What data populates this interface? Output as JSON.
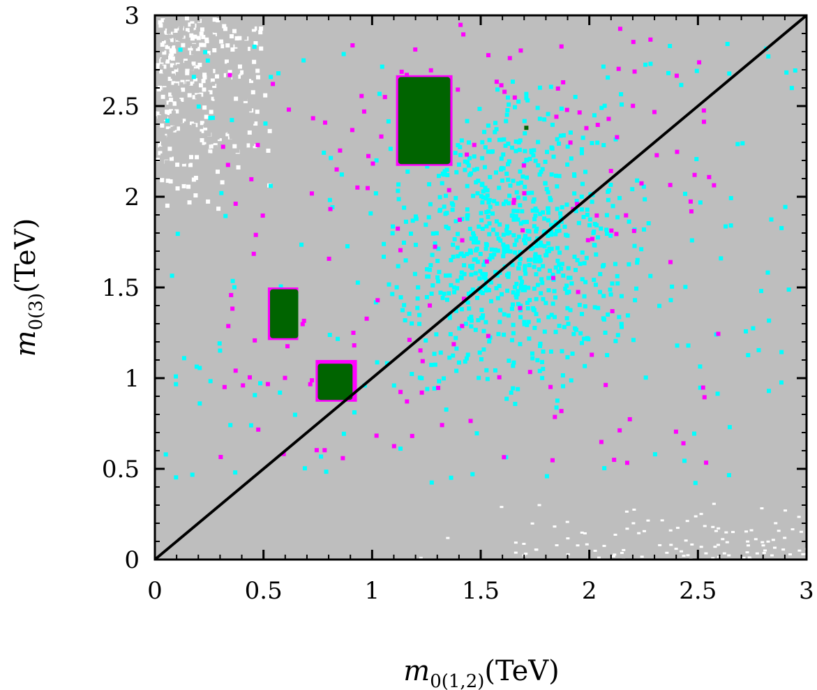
{
  "chart_data": {
    "type": "scatter",
    "title": "",
    "xlabel": {
      "base": "m",
      "sub": "0(1,2)",
      "unit": "(TeV)"
    },
    "ylabel": {
      "base": "m",
      "sub": "0(3)",
      "unit": "(TeV)"
    },
    "xlim": [
      0,
      3
    ],
    "ylim": [
      0,
      3
    ],
    "xticks": [
      "0",
      "0.5",
      "1",
      "1.5",
      "2",
      "2.5",
      "3"
    ],
    "yticks": [
      "0",
      "0.5",
      "1",
      "1.5",
      "2",
      "2.5",
      "3"
    ],
    "xtick_values": [
      0,
      0.5,
      1,
      1.5,
      2,
      2.5,
      3
    ],
    "ytick_values": [
      0,
      0.5,
      1,
      1.5,
      2,
      2.5,
      3
    ],
    "colors": {
      "background_points": "#bebebe",
      "cyan_points": "#00ffff",
      "magenta_points": "#ff00ff",
      "green_points": "#006400",
      "diagonal": "#000000"
    },
    "diagonal_line": {
      "x": [
        0,
        3
      ],
      "y": [
        0,
        3
      ]
    },
    "series": [
      {
        "name": "all points",
        "color": "#bebebe",
        "coverage": "dense",
        "x_range": [
          0,
          3
        ],
        "y_range": [
          0,
          3
        ]
      },
      {
        "name": "cyan points",
        "color": "#00ffff",
        "count": 900,
        "x_range": [
          0.05,
          2.95
        ],
        "y_range": [
          0.4,
          2.85
        ]
      },
      {
        "name": "magenta points",
        "color": "#ff00ff",
        "count": 170,
        "x_range": [
          0.3,
          2.6
        ],
        "y_range": [
          0.5,
          2.95
        ]
      },
      {
        "name": "green points",
        "color": "#006400",
        "regions": [
          {
            "x": [
              1.12,
              1.36
            ],
            "y": [
              2.18,
              2.66
            ]
          },
          {
            "x": [
              0.53,
              0.66
            ],
            "y": [
              1.22,
              1.49
            ]
          },
          {
            "x": [
              0.75,
              0.91
            ],
            "y": [
              0.88,
              1.08
            ]
          }
        ],
        "single": [
          {
            "x": 1.71,
            "y": 2.38
          }
        ]
      },
      {
        "name": "magenta boxes",
        "color": "#ff00ff",
        "regions": [
          {
            "x": [
              1.11,
              1.37
            ],
            "y": [
              2.17,
              2.67
            ]
          },
          {
            "x": [
              0.52,
              0.66
            ],
            "y": [
              1.21,
              1.5
            ]
          },
          {
            "x": [
              0.74,
              0.93
            ],
            "y": [
              0.87,
              1.1
            ]
          }
        ]
      }
    ]
  }
}
